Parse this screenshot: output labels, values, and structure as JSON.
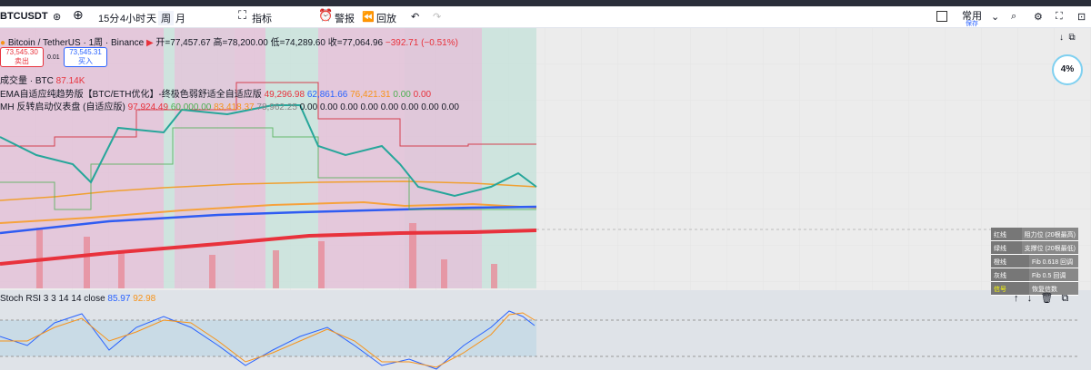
{
  "toolbar": {
    "symbol": "BTCUSDT",
    "intervals": [
      "15分",
      "4小时",
      "天",
      "周",
      "月"
    ],
    "indicators": "指标",
    "alert": "警报",
    "replay": "回放",
    "layout": "常用",
    "save": "保存"
  },
  "legend": {
    "title": "Bitcoin / TetherUS · 1周 · Binance",
    "open": "开=77,457.67",
    "high": "高=78,200.00",
    "low": "低=74,289.60",
    "close": "收=77,064.96",
    "change": "−392.71 (−0.51%)"
  },
  "trade": {
    "sell_price": "73,545.30",
    "sell": "卖出",
    "spread": "0.01",
    "buy_price": "73,545.31",
    "buy": "买入"
  },
  "indicators": [
    {
      "name": "成交量 · BTC",
      "values": [
        "87.14K"
      ]
    },
    {
      "name": "EMA自适应纯趋势版【BTC/ETH优化】-终极色弱舒适全自适应版",
      "values": [
        "49,296.98",
        "62,861.66",
        "76,421.31",
        "0.00",
        "0.00"
      ]
    },
    {
      "name": "MH 反转启动仪表盘 (自适应版)",
      "values": [
        "97,924.49",
        "60,000.00",
        "83,418.37",
        "78,962.25",
        "0.00",
        "0.00",
        "0.00",
        "0.00",
        "0.00",
        "0.00",
        "0.00",
        "0.00"
      ]
    }
  ],
  "badge": "4%",
  "legend_table": [
    [
      "红线",
      "阻力位 (20根最高)"
    ],
    [
      "绿线",
      "支撑位 (20根最低)"
    ],
    [
      "橙线",
      "Fib 0.618 回调"
    ],
    [
      "灰线",
      "Fib 0.5 回调"
    ],
    [
      "信号",
      "恢复信数"
    ]
  ],
  "rsi": {
    "name": "Stoch RSI 3 3 14 14 close",
    "k": "85.97",
    "d": "92.98"
  }
}
